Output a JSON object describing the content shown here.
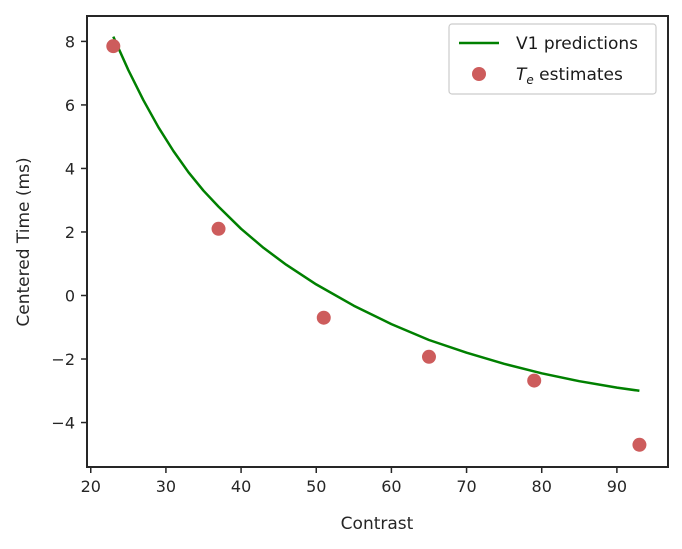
{
  "chart_data": {
    "type": "line",
    "xlabel": "Contrast",
    "ylabel": "Centered Time (ms)",
    "xlim": [
      19.5,
      96.8
    ],
    "ylim": [
      -5.4,
      8.8
    ],
    "xticks": [
      20,
      30,
      40,
      50,
      60,
      70,
      80,
      90
    ],
    "yticks": [
      -4,
      -2,
      0,
      2,
      4,
      6,
      8
    ],
    "xtick_labels": [
      "20",
      "30",
      "40",
      "50",
      "60",
      "70",
      "80",
      "90"
    ],
    "ytick_labels": [
      "−4",
      "−2",
      "0",
      "2",
      "4",
      "6",
      "8"
    ],
    "grid": false,
    "legend_position": "top-right",
    "series": [
      {
        "name": "V1 predictions",
        "kind": "line",
        "color": "#008000",
        "x": [
          23,
          25,
          27,
          29,
          31,
          33,
          35,
          37,
          40,
          43,
          46,
          50,
          55,
          60,
          65,
          70,
          75,
          80,
          85,
          90,
          93
        ],
        "y": [
          8.15,
          7.1,
          6.15,
          5.3,
          4.55,
          3.88,
          3.3,
          2.8,
          2.1,
          1.5,
          0.97,
          0.35,
          -0.32,
          -0.9,
          -1.4,
          -1.8,
          -2.15,
          -2.45,
          -2.7,
          -2.9,
          -3.0
        ]
      },
      {
        "name": "T_e estimates",
        "legend_main": "T",
        "legend_sub": "e",
        "legend_rest": " estimates",
        "kind": "scatter",
        "color": "#cd5c5c",
        "x": [
          23,
          37,
          51,
          65,
          79,
          93
        ],
        "y": [
          7.85,
          2.1,
          -0.7,
          -1.93,
          -2.68,
          -4.7
        ]
      }
    ]
  }
}
